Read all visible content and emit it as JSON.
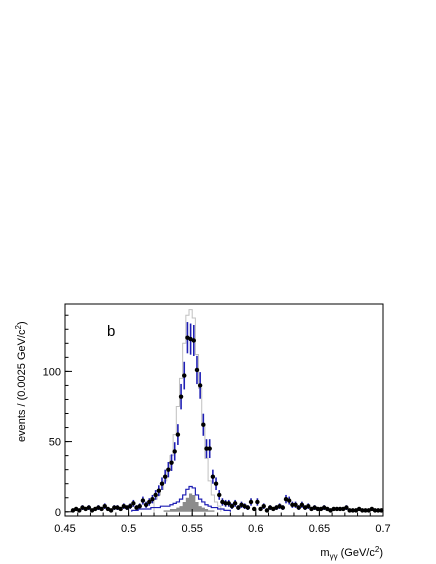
{
  "chart_data": {
    "type": "histogram",
    "panel_label": "b",
    "xlabel": "m",
    "xlabel_sub": "γγ",
    "xlabel_unit_pre": " (GeV/c",
    "xlabel_unit_sup": "2",
    "xlabel_unit_post": ")",
    "ylabel": "events / (0.0025 GeV/c",
    "ylabel_sup": "2",
    "ylabel_post": ")",
    "xlim": [
      0.45,
      0.7
    ],
    "ylim": [
      -3,
      148
    ],
    "x_ticks": [
      {
        "value": 0.45,
        "label": "0.45"
      },
      {
        "value": 0.5,
        "label": "0.5"
      },
      {
        "value": 0.55,
        "label": "0.55"
      },
      {
        "value": 0.6,
        "label": "0.6"
      },
      {
        "value": 0.65,
        "label": "0.65"
      },
      {
        "value": 0.7,
        "label": "0.7"
      }
    ],
    "y_ticks": [
      {
        "value": 0,
        "label": "0"
      },
      {
        "value": 50,
        "label": "50"
      },
      {
        "value": 100,
        "label": "100"
      }
    ],
    "bin_width": 0.0025,
    "colors": {
      "data": "#000000",
      "error_bars": "#1f1fb4",
      "mc_total": "#c0c0c0",
      "background_outline": "#1f1fb4",
      "background_fill": "#8c8c8c"
    },
    "series": [
      {
        "kind": "data_points",
        "x": [
          0.45625,
          0.45875,
          0.46125,
          0.46375,
          0.46625,
          0.46875,
          0.47125,
          0.47375,
          0.47625,
          0.47875,
          0.48125,
          0.48375,
          0.48625,
          0.48875,
          0.49125,
          0.49375,
          0.49625,
          0.49875,
          0.50125,
          0.50375,
          0.50625,
          0.50875,
          0.51125,
          0.51375,
          0.51625,
          0.51875,
          0.52125,
          0.52375,
          0.52625,
          0.52875,
          0.53125,
          0.53375,
          0.53625,
          0.53875,
          0.54125,
          0.54375,
          0.54625,
          0.54875,
          0.55125,
          0.55375,
          0.55625,
          0.55875,
          0.56125,
          0.56375,
          0.56625,
          0.56875,
          0.57125,
          0.57375,
          0.57625,
          0.57875,
          0.58125,
          0.58375,
          0.58625,
          0.58875,
          0.59125,
          0.59375,
          0.59625,
          0.59875,
          0.60125,
          0.60375,
          0.60625,
          0.60875,
          0.61125,
          0.61375,
          0.61625,
          0.61875,
          0.62125,
          0.62375,
          0.62625,
          0.62875,
          0.63125,
          0.63375,
          0.63625,
          0.63875,
          0.64125,
          0.64375,
          0.64625,
          0.64875,
          0.65125,
          0.65375,
          0.65625,
          0.65875,
          0.66125,
          0.66375,
          0.66625,
          0.66875,
          0.67125,
          0.67375,
          0.67625,
          0.67875,
          0.68125,
          0.68375,
          0.68625,
          0.68875,
          0.69125,
          0.69375,
          0.69625,
          0.69875
        ],
        "y": [
          1,
          2,
          1,
          3,
          2,
          3,
          1,
          2,
          3,
          2,
          4,
          2,
          1,
          3,
          3,
          2,
          4,
          3,
          4,
          6,
          3,
          4,
          8,
          5,
          7,
          9,
          12,
          15,
          20,
          25,
          30,
          35,
          43,
          55,
          82,
          97,
          124,
          123,
          122,
          101,
          90,
          62,
          45,
          45,
          25,
          20,
          12,
          7,
          6,
          6,
          4,
          6,
          3,
          5,
          4,
          3,
          7,
          2,
          7,
          2,
          4,
          1,
          3,
          2,
          3,
          4,
          3,
          9,
          8,
          5,
          5,
          3,
          5,
          3,
          4,
          2,
          3,
          2,
          2,
          3,
          2,
          1,
          2,
          2,
          2,
          2,
          3,
          1,
          1,
          1,
          2,
          1,
          1,
          1,
          2,
          1,
          1,
          1
        ]
      },
      {
        "kind": "mc_total_histogram",
        "x": [
          0.52125,
          0.52375,
          0.52625,
          0.52875,
          0.53125,
          0.53375,
          0.53625,
          0.53875,
          0.54125,
          0.54375,
          0.54625,
          0.54875,
          0.55125,
          0.55375,
          0.55625,
          0.55875,
          0.56125,
          0.56375,
          0.56625,
          0.56875,
          0.57125
        ],
        "y": [
          9,
          12,
          16,
          22,
          30,
          40,
          55,
          75,
          95,
          120,
          140,
          144,
          138,
          112,
          88,
          62,
          38,
          22,
          12,
          7,
          4
        ]
      },
      {
        "kind": "background_histogram",
        "x": [
          0.50375,
          0.50625,
          0.50875,
          0.51125,
          0.51375,
          0.51625,
          0.51875,
          0.52125,
          0.52375,
          0.52625,
          0.52875,
          0.53125,
          0.53375,
          0.53625,
          0.53875,
          0.54125,
          0.54375,
          0.54625,
          0.54875,
          0.55125,
          0.55375,
          0.55625,
          0.55875,
          0.56125,
          0.56375,
          0.56625,
          0.56875,
          0.57125,
          0.57375,
          0.57625,
          0.57875
        ],
        "y": [
          1,
          1,
          2,
          2,
          2,
          2,
          3,
          3,
          3,
          4,
          4,
          4,
          5,
          6,
          7,
          9,
          12,
          16,
          18,
          17,
          12,
          9,
          7,
          5,
          4,
          3,
          3,
          2,
          2,
          1,
          1
        ]
      },
      {
        "kind": "background_filled_histogram",
        "x": [
          0.52875,
          0.53125,
          0.53375,
          0.53625,
          0.53875,
          0.54125,
          0.54375,
          0.54625,
          0.54875,
          0.55125,
          0.55375,
          0.55625,
          0.55875,
          0.56125,
          0.56375,
          0.56625
        ],
        "y": [
          1,
          1,
          2,
          2,
          3,
          4,
          7,
          10,
          13,
          12,
          7,
          4,
          3,
          2,
          1,
          1
        ]
      }
    ]
  }
}
